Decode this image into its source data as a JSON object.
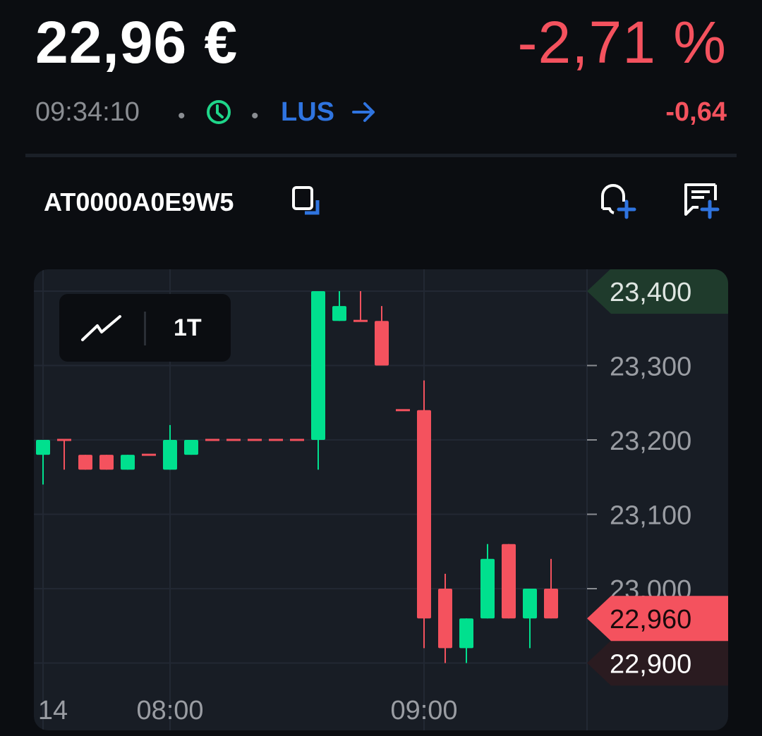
{
  "header": {
    "price": "22,96 €",
    "change_percent": "-2,71 %",
    "time": "09:34:10",
    "separator": "•",
    "venue": "LUS",
    "change_abs": "-0,64",
    "isin": "AT0000A0E9W5",
    "icons": [
      "clock-icon",
      "arrow-right-icon",
      "copy-icon",
      "add-alert-icon",
      "add-note-icon"
    ]
  },
  "colors": {
    "up": "#00e08e",
    "down": "#f4525e",
    "accent": "#2f74e0",
    "background": "#0b0d11",
    "panel": "#181d25"
  },
  "chart_toolbar": {
    "chart_type_icon": "line-chart-icon",
    "timeframe": "1T"
  },
  "chart_data": {
    "type": "candlestick",
    "x_tick_labels": [
      "14",
      "08:00",
      "09:00"
    ],
    "y_tick_labels": [
      "23,300",
      "23,200",
      "23,100",
      "23,000"
    ],
    "y_range": [
      22.87,
      23.43
    ],
    "grid": true,
    "price_tags": {
      "high": "23,400",
      "last": "22,960",
      "low": "22,900"
    },
    "candles": [
      {
        "o": 23.18,
        "h": 23.2,
        "l": 23.14,
        "c": 23.2
      },
      {
        "o": 23.2,
        "h": 23.2,
        "l": 23.16,
        "c": 23.2
      },
      {
        "o": 23.18,
        "h": 23.18,
        "l": 23.16,
        "c": 23.16
      },
      {
        "o": 23.18,
        "h": 23.18,
        "l": 23.16,
        "c": 23.16
      },
      {
        "o": 23.16,
        "h": 23.18,
        "l": 23.16,
        "c": 23.18
      },
      {
        "o": 23.18,
        "h": 23.18,
        "l": 23.18,
        "c": 23.18
      },
      {
        "o": 23.16,
        "h": 23.22,
        "l": 23.16,
        "c": 23.2
      },
      {
        "o": 23.18,
        "h": 23.2,
        "l": 23.18,
        "c": 23.2
      },
      {
        "o": 23.2,
        "h": 23.2,
        "l": 23.2,
        "c": 23.2
      },
      {
        "o": 23.2,
        "h": 23.2,
        "l": 23.2,
        "c": 23.2
      },
      {
        "o": 23.2,
        "h": 23.2,
        "l": 23.2,
        "c": 23.2
      },
      {
        "o": 23.2,
        "h": 23.2,
        "l": 23.2,
        "c": 23.2
      },
      {
        "o": 23.2,
        "h": 23.2,
        "l": 23.2,
        "c": 23.2
      },
      {
        "o": 23.2,
        "h": 23.4,
        "l": 23.16,
        "c": 23.4
      },
      {
        "o": 23.36,
        "h": 23.4,
        "l": 23.36,
        "c": 23.38
      },
      {
        "o": 23.36,
        "h": 23.4,
        "l": 23.36,
        "c": 23.36
      },
      {
        "o": 23.36,
        "h": 23.38,
        "l": 23.3,
        "c": 23.3
      },
      {
        "o": 23.24,
        "h": 23.24,
        "l": 23.24,
        "c": 23.24
      },
      {
        "o": 23.24,
        "h": 23.28,
        "l": 22.92,
        "c": 22.96
      },
      {
        "o": 23.0,
        "h": 23.02,
        "l": 22.9,
        "c": 22.92
      },
      {
        "o": 22.92,
        "h": 22.96,
        "l": 22.9,
        "c": 22.96
      },
      {
        "o": 22.96,
        "h": 23.06,
        "l": 22.96,
        "c": 23.04
      },
      {
        "o": 23.06,
        "h": 23.06,
        "l": 22.96,
        "c": 22.96
      },
      {
        "o": 22.96,
        "h": 23.0,
        "l": 22.92,
        "c": 23.0
      },
      {
        "o": 23.0,
        "h": 23.04,
        "l": 22.96,
        "c": 22.96
      }
    ]
  }
}
